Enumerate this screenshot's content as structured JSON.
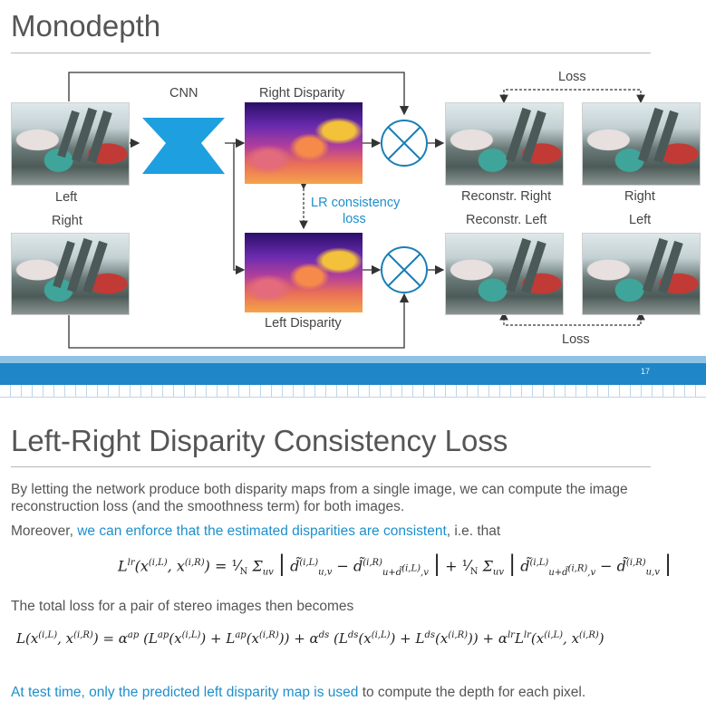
{
  "slide1": {
    "title": "Monodepth",
    "labels": {
      "cnn": "CNN",
      "right_disparity": "Right Disparity",
      "left_disparity": "Left Disparity",
      "left": "Left",
      "right": "Right",
      "lr_consistency_line1": "LR consistency",
      "lr_consistency_line2": "loss",
      "reconstr_right": "Reconstr. Right",
      "reconstr_left": "Reconstr. Left",
      "right_target": "Right",
      "left_target": "Left",
      "loss_top": "Loss",
      "loss_bottom": "Loss"
    },
    "page_number": "17",
    "colors": {
      "accent": "#1f86c7",
      "cnn": "#1d9fe0"
    }
  },
  "slide2": {
    "title": "Left-Right Disparity Consistency Loss",
    "para1": "By letting the network produce both disparity maps from a single image, we can compute the image reconstruction loss (and the smoothness term) for both images.",
    "para2_prefix": "Moreover, ",
    "para2_highlight": "we can enforce that the estimated disparities are consistent",
    "para2_suffix": ", i.e. that",
    "para3": "The total loss for a pair of stereo images then becomes",
    "para4_highlight": "At test time, only the predicted left disparity map is used",
    "para4_suffix": " to compute the depth for each pixel."
  }
}
